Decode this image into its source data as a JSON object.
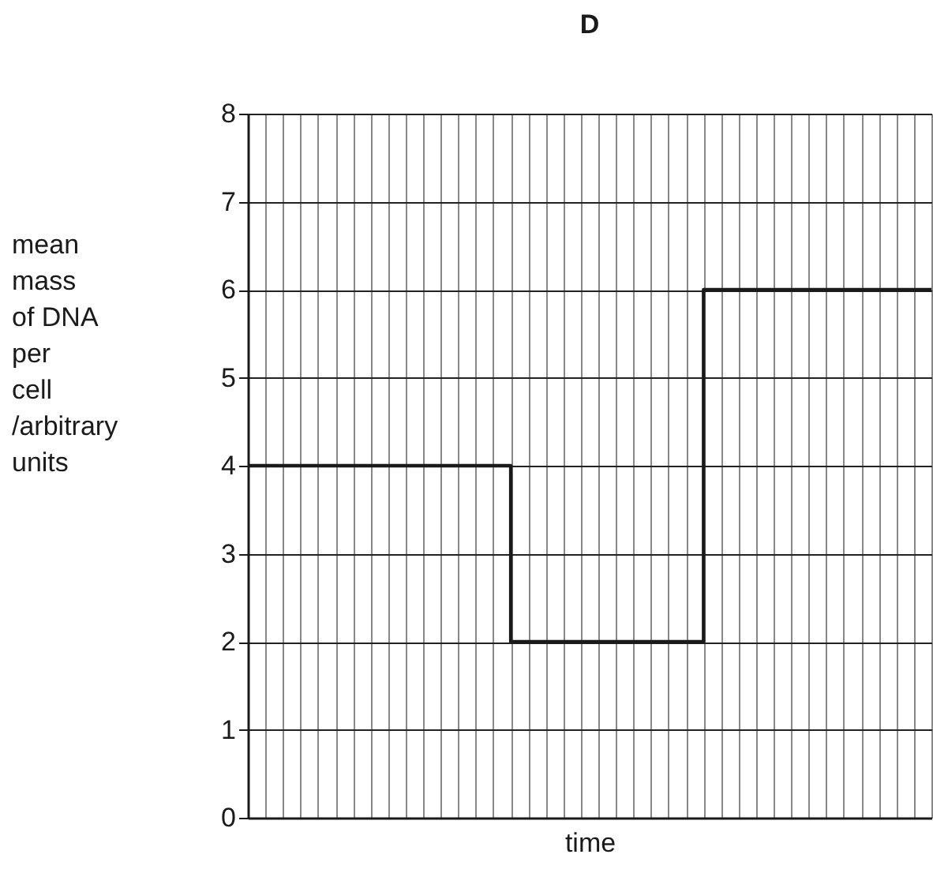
{
  "chart_data": {
    "type": "step",
    "title": "D",
    "xlabel": "time",
    "ylabel": "mean\nmass\nof DNA\nper\ncell\n/arbitrary\nunits",
    "categories": [
      null,
      null,
      null,
      null,
      null,
      null,
      null,
      null,
      null,
      null,
      null,
      null,
      null,
      null,
      null,
      null,
      null,
      null,
      null,
      null,
      null,
      null,
      null,
      null,
      null,
      null,
      null,
      null,
      null,
      null,
      null,
      null,
      null,
      null,
      null,
      null,
      null,
      null,
      null,
      null
    ],
    "series": [
      {
        "color": "#1a1a1a",
        "values": [
          4,
          4,
          4,
          4,
          4,
          4,
          4,
          4,
          4,
          4,
          4,
          4,
          4,
          4,
          4,
          2,
          2,
          2,
          2,
          2,
          2,
          2,
          2,
          2,
          2,
          2,
          6,
          6,
          6,
          6,
          6,
          6,
          6,
          6,
          6,
          6,
          6,
          6,
          6,
          6
        ]
      }
    ],
    "ylim": [
      0,
      8
    ],
    "yticks": [
      0,
      1,
      2,
      3,
      4,
      5,
      6,
      7,
      8
    ],
    "tick_labels": "y",
    "grid": true,
    "marker": "none",
    "line_style": "solid"
  }
}
